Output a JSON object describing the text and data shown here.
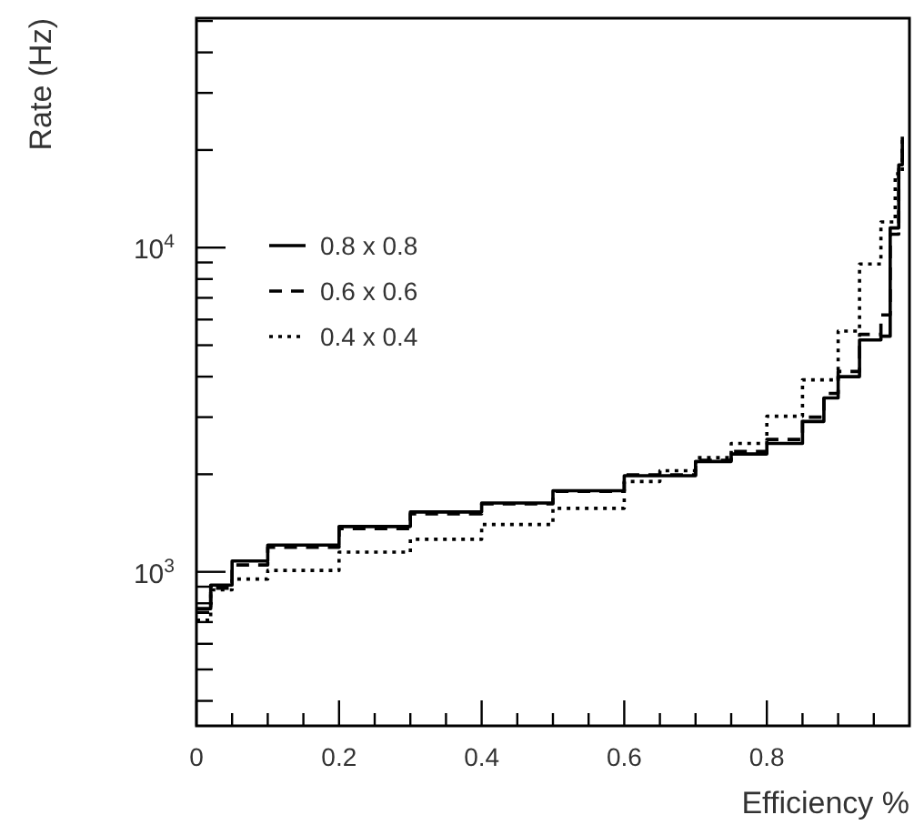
{
  "chart_data": {
    "type": "step",
    "xlabel": "Efficiency %",
    "ylabel": "Rate (Hz)",
    "log": "y",
    "xlim": [
      0,
      1
    ],
    "ylim": [
      335,
      51000
    ],
    "xticks": [
      0,
      {
        "value": 0.05,
        "label": null
      },
      {
        "value": 0.1,
        "label": null
      },
      {
        "value": 0.15,
        "label": null
      },
      0.2,
      {
        "value": 0.25,
        "label": null
      },
      {
        "value": 0.3,
        "label": null
      },
      {
        "value": 0.35,
        "label": null
      },
      0.4,
      {
        "value": 0.45,
        "label": null
      },
      {
        "value": 0.5,
        "label": null
      },
      {
        "value": 0.55,
        "label": null
      },
      0.6,
      {
        "value": 0.65,
        "label": null
      },
      {
        "value": 0.7,
        "label": null
      },
      {
        "value": 0.75,
        "label": null
      },
      0.8,
      {
        "value": 0.85,
        "label": null
      },
      {
        "value": 0.9,
        "label": null
      },
      {
        "value": 0.95,
        "label": null
      }
    ],
    "yticks": [
      {
        "value": 400,
        "label": null
      },
      {
        "value": 500,
        "label": null
      },
      {
        "value": 600,
        "label": null
      },
      {
        "value": 700,
        "label": null
      },
      {
        "value": 800,
        "label": null
      },
      {
        "value": 900,
        "label": null
      },
      {
        "value": 1000,
        "label": "10$^{3}$"
      },
      {
        "value": 2000,
        "label": null
      },
      {
        "value": 3000,
        "label": null
      },
      {
        "value": 4000,
        "label": null
      },
      {
        "value": 5000,
        "label": null
      },
      {
        "value": 6000,
        "label": null
      },
      {
        "value": 7000,
        "label": null
      },
      {
        "value": 8000,
        "label": null
      },
      {
        "value": 9000,
        "label": null
      },
      {
        "value": 10000,
        "label": "10$^{4}$"
      },
      {
        "value": 20000,
        "label": null
      },
      {
        "value": 30000,
        "label": null
      },
      {
        "value": 40000,
        "label": null
      },
      {
        "value": 50000,
        "label": null
      }
    ],
    "legend": "top left",
    "grid": false,
    "marker": "none",
    "series": [
      {
        "name": "0.8 x 0.8",
        "color": "#000000",
        "line_style": "solid",
        "x": [
          0,
          0.02,
          0.05,
          0.1,
          0.2,
          0.3,
          0.4,
          0.5,
          0.6,
          0.7,
          0.75,
          0.8,
          0.85,
          0.88,
          0.9,
          0.93,
          0.96,
          0.973,
          0.985,
          0.99
        ],
        "values": [
          770,
          910,
          1080,
          1210,
          1380,
          1530,
          1630,
          1780,
          1980,
          2190,
          2310,
          2490,
          2910,
          3440,
          4000,
          5190,
          5330,
          11500,
          18000,
          22000
        ]
      },
      {
        "name": "0.6 x 0.6",
        "color": "#000000",
        "line_style": "dashed",
        "x": [
          0,
          0.02,
          0.05,
          0.1,
          0.2,
          0.3,
          0.4,
          0.5,
          0.6,
          0.7,
          0.75,
          0.8,
          0.85,
          0.88,
          0.9,
          0.93,
          0.96,
          0.973,
          0.985,
          0.99
        ],
        "values": [
          750,
          890,
          1050,
          1190,
          1360,
          1510,
          1620,
          1770,
          1990,
          2210,
          2350,
          2560,
          3000,
          3550,
          4150,
          5400,
          6200,
          11000,
          17500,
          21000
        ]
      },
      {
        "name": "0.4 x 0.4",
        "color": "#000000",
        "line_style": "dotted",
        "x": [
          0,
          0.02,
          0.05,
          0.1,
          0.2,
          0.3,
          0.4,
          0.5,
          0.6,
          0.65,
          0.7,
          0.75,
          0.8,
          0.85,
          0.9,
          0.93,
          0.96,
          0.98,
          0.99
        ],
        "values": [
          710,
          880,
          950,
          1010,
          1150,
          1260,
          1400,
          1570,
          1900,
          2050,
          2250,
          2490,
          3020,
          3910,
          5530,
          8900,
          12000,
          16900,
          22200
        ]
      }
    ]
  }
}
